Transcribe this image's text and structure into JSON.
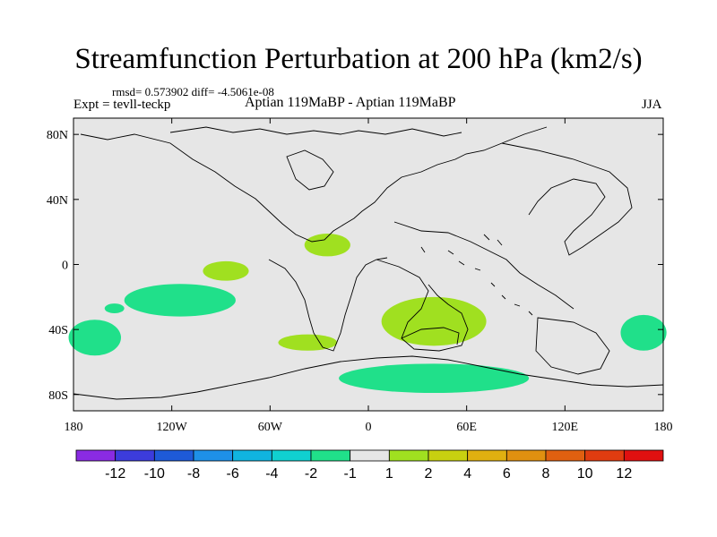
{
  "header": {
    "title": "Streamfunction Perturbation at 200 hPa (km2/s)",
    "stats": "rmsd= 0.573902 diff= -4.5061e-08",
    "expt": "Expt = tevll-teckp",
    "experiments": "Aptian   119MaBP - Aptian   119MaBP",
    "season": "JJA"
  },
  "map": {
    "lon_range": [
      -180,
      180
    ],
    "lat_range": [
      -90,
      90
    ],
    "y_ticks": [
      {
        "lat": 80,
        "label": "80N"
      },
      {
        "lat": 40,
        "label": "40N"
      },
      {
        "lat": 0,
        "label": "0"
      },
      {
        "lat": -40,
        "label": "40S"
      },
      {
        "lat": -80,
        "label": "80S"
      }
    ],
    "x_ticks": [
      {
        "lon": -180,
        "label": "180"
      },
      {
        "lon": -120,
        "label": "120W"
      },
      {
        "lon": -60,
        "label": "60W"
      },
      {
        "lon": 0,
        "label": "0"
      },
      {
        "lon": 60,
        "label": "60E"
      },
      {
        "lon": 120,
        "label": "120E"
      },
      {
        "lon": 180,
        "label": "180"
      }
    ],
    "background_color": "#e6e6e6",
    "regions": [
      {
        "name": "neg-anomaly-pacific-south",
        "lon": -115,
        "lat": -22,
        "rlon": 34,
        "rlat": 10,
        "color": "#20e08a"
      },
      {
        "name": "neg-anomaly-pacific-small",
        "lon": -155,
        "lat": -27,
        "rlon": 6,
        "rlat": 3,
        "color": "#20e08a"
      },
      {
        "name": "neg-anomaly-dateline",
        "lon": -167,
        "lat": -45,
        "rlon": 16,
        "rlat": 11,
        "color": "#20e08a"
      },
      {
        "name": "neg-anomaly-antarctic",
        "lon": 40,
        "lat": -70,
        "rlon": 58,
        "rlat": 9,
        "color": "#20e08a"
      },
      {
        "name": "neg-anomaly-east-pacific",
        "lon": 168,
        "lat": -42,
        "rlon": 14,
        "rlat": 11,
        "color": "#20e08a"
      },
      {
        "name": "pos-anomaly-tropical-pacific",
        "lon": -87,
        "lat": -4,
        "rlon": 14,
        "rlat": 6,
        "color": "#a0e020"
      },
      {
        "name": "pos-anomaly-west-africa",
        "lon": -25,
        "lat": 12,
        "rlon": 14,
        "rlat": 7,
        "color": "#a0e020"
      },
      {
        "name": "pos-anomaly-south-atlantic",
        "lon": -37,
        "lat": -48,
        "rlon": 18,
        "rlat": 5,
        "color": "#a0e020"
      },
      {
        "name": "pos-anomaly-indian-ocean",
        "lon": 40,
        "lat": -35,
        "rlon": 32,
        "rlat": 15,
        "color": "#a0e020"
      }
    ]
  },
  "colorbar": {
    "colors": [
      "#8a2be2",
      "#3c3cdc",
      "#1e5ad8",
      "#1e90e8",
      "#10b4e0",
      "#10d0d0",
      "#20e08a",
      "#e6e6e6",
      "#a0e020",
      "#c8d010",
      "#e0b010",
      "#e09010",
      "#e06010",
      "#e03c10",
      "#e01010"
    ],
    "labels": [
      "-12",
      "-10",
      "-8",
      "-6",
      "-4",
      "-2",
      "-1",
      "1",
      "2",
      "4",
      "6",
      "8",
      "10",
      "12"
    ]
  }
}
